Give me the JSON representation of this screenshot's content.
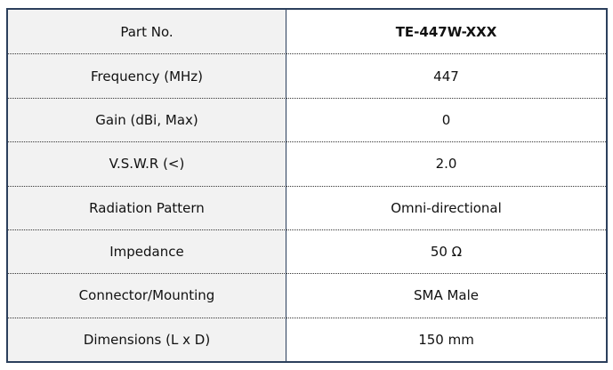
{
  "table": {
    "rows": [
      [
        "Part No.",
        "TE-447W-XXX"
      ],
      [
        "Frequency (MHz)",
        "447"
      ],
      [
        "Gain (dBi, Max)",
        "0"
      ],
      [
        "V.S.W.R (<)",
        "2.0"
      ],
      [
        "Radiation Pattern",
        "Omni-directional"
      ],
      [
        "Impedance",
        "50 Ω"
      ],
      [
        "Connector/Mounting",
        "SMA Male"
      ],
      [
        "Dimensions (L x D)",
        "150 mm"
      ]
    ]
  }
}
